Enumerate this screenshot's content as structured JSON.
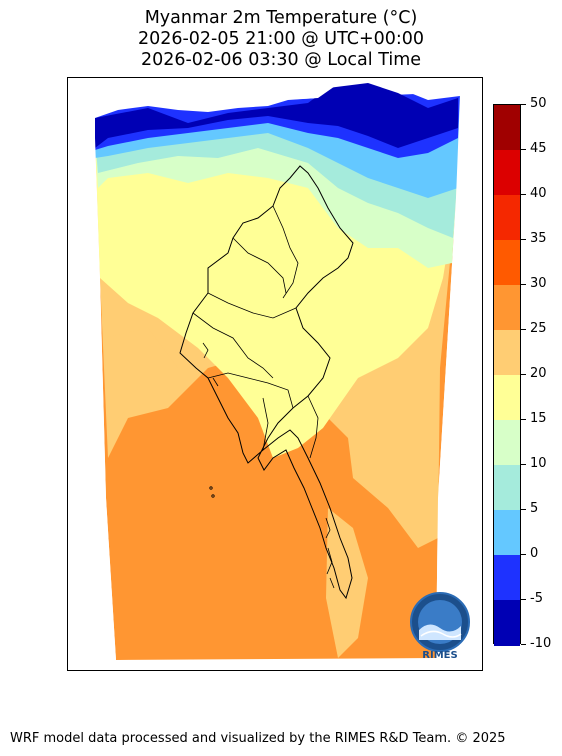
{
  "title": {
    "line1": "Myanmar 2m Temperature (°C)",
    "line2": "2026-02-05 21:00 @ UTC+00:00",
    "line3": "2026-02-06 03:30 @ Local Time"
  },
  "colorbar": {
    "levels": [
      {
        "label": "50",
        "color": "#a00000"
      },
      {
        "label": "45",
        "color": "#dc0000"
      },
      {
        "label": "40",
        "color": "#f52800"
      },
      {
        "label": "35",
        "color": "#ff5a00"
      },
      {
        "label": "30",
        "color": "#ff9632"
      },
      {
        "label": "25",
        "color": "#ffcd73"
      },
      {
        "label": "20",
        "color": "#ffff96"
      },
      {
        "label": "15",
        "color": "#d7ffc8"
      },
      {
        "label": "10",
        "color": "#a5ebdc"
      },
      {
        "label": "5",
        "color": "#64c8ff"
      },
      {
        "label": "0",
        "color": "#1e32ff"
      },
      {
        "label": "-5",
        "color": "#0000b4"
      },
      {
        "label": "-10",
        "color": ""
      }
    ]
  },
  "logo": {
    "text": "RIMES",
    "name": "rimes-logo"
  },
  "footer": {
    "text": "WRF model data processed and visualized by the RIMES R&D Team. © 2025"
  }
}
